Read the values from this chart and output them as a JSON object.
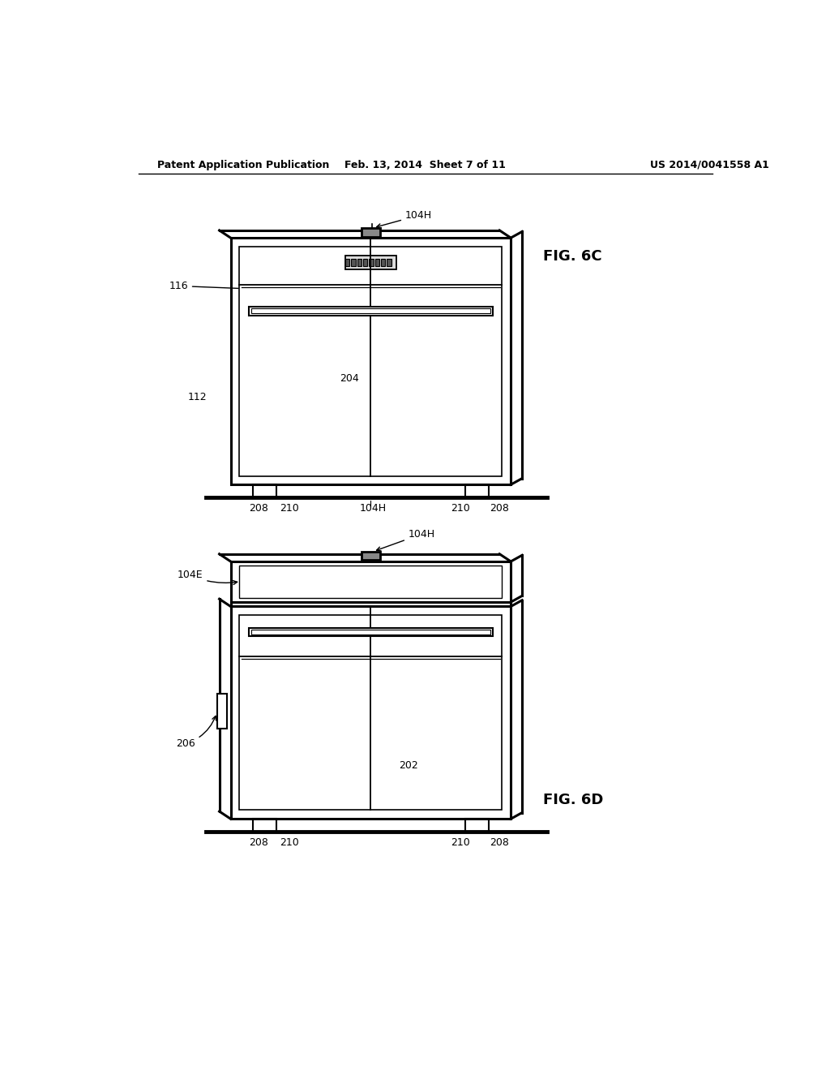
{
  "bg_color": "#ffffff",
  "line_color": "#000000",
  "header_left": "Patent Application Publication",
  "header_mid": "Feb. 13, 2014  Sheet 7 of 11",
  "header_right": "US 2014/0041558 A1",
  "fig6c_label": "FIG. 6C",
  "fig6d_label": "FIG. 6D"
}
